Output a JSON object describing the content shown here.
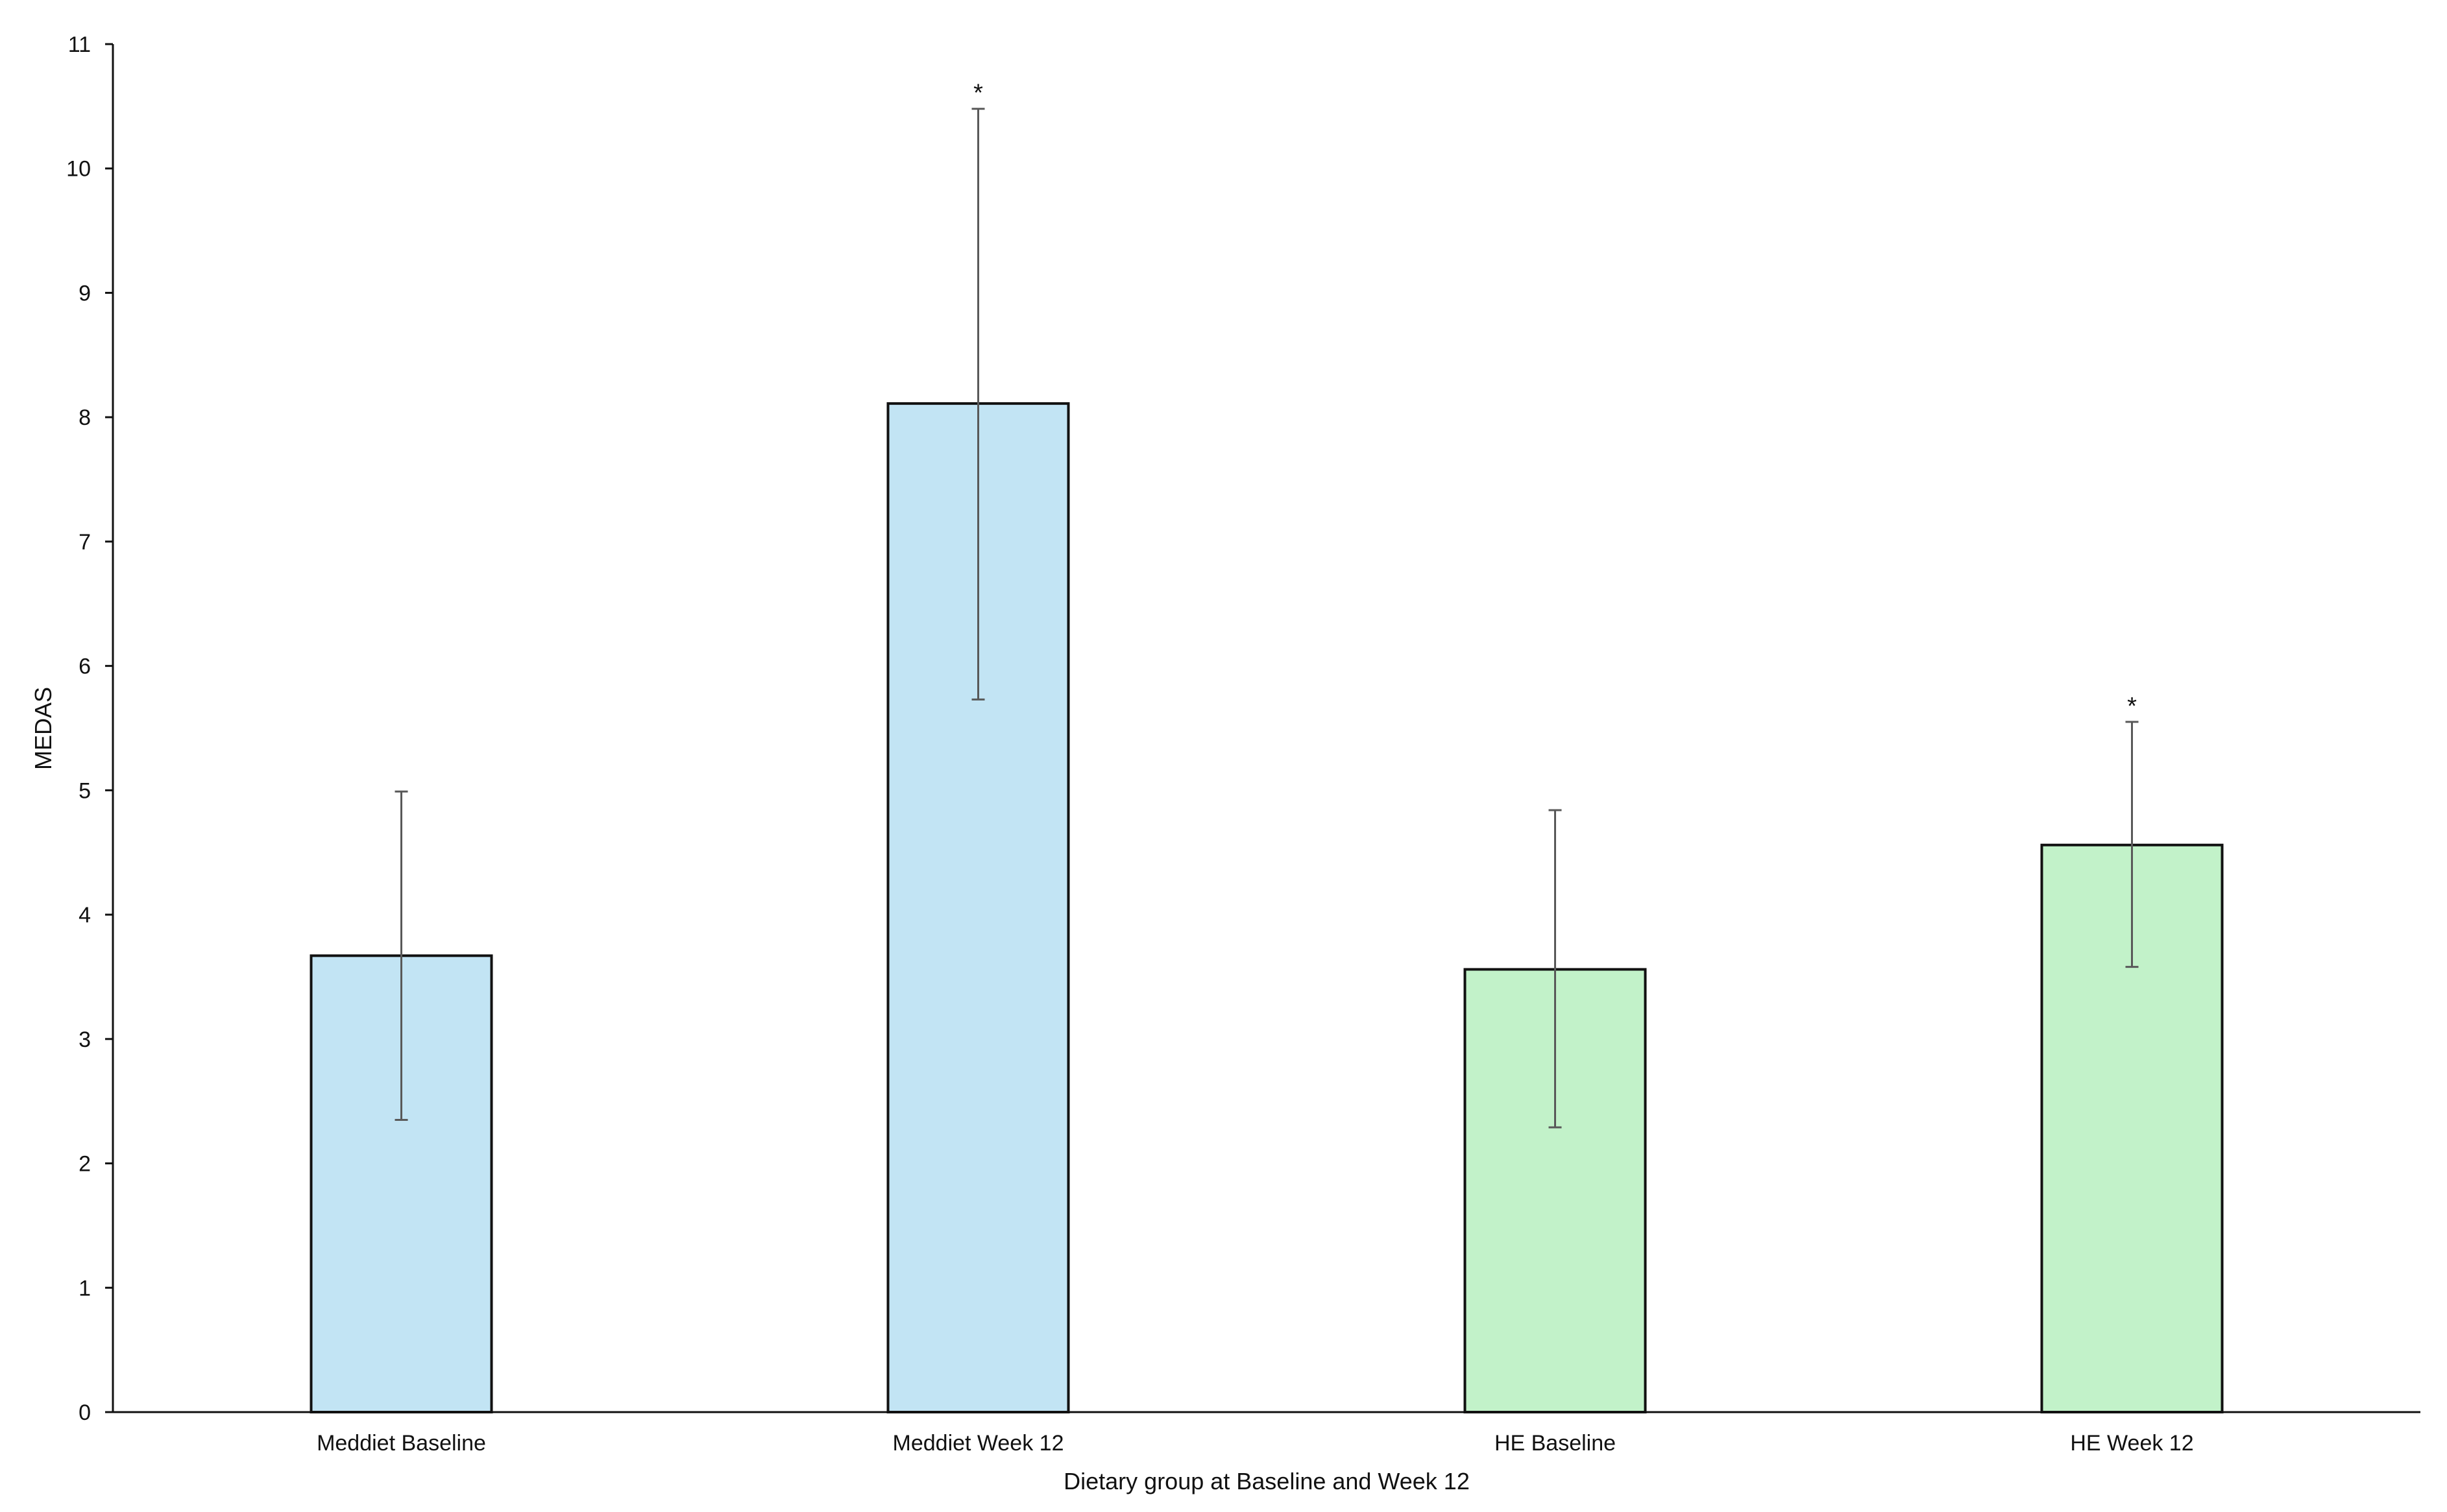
{
  "chart_data": {
    "type": "bar",
    "title": "",
    "xlabel": "Dietary group at Baseline and Week 12",
    "ylabel": "MEDAS",
    "ylim": [
      0,
      11
    ],
    "yticks": [
      0,
      1,
      2,
      3,
      4,
      5,
      6,
      7,
      8,
      9,
      10,
      11
    ],
    "grid": false,
    "legend": "none",
    "categories": [
      "Meddiet Baseline",
      "Meddiet Week 12",
      "HE Baseline",
      "HE Week 12"
    ],
    "values": [
      3.67,
      8.11,
      3.56,
      4.56
    ],
    "error_low": [
      2.35,
      5.73,
      2.29,
      3.58
    ],
    "error_high": [
      4.99,
      10.48,
      4.84,
      5.55
    ],
    "significance": [
      "",
      "*",
      "",
      "*"
    ],
    "colors": [
      "#c2e4f4",
      "#c2e4f4",
      "#c2f2c9",
      "#c2f2c9"
    ],
    "edge_color": "#111111",
    "errorbar_color": "#595959"
  }
}
